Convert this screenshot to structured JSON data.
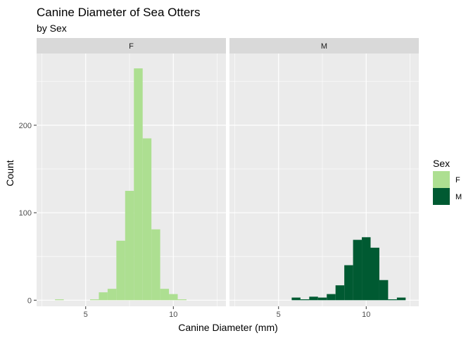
{
  "chart_data": {
    "type": "bar",
    "title": "Canine Diameter of Sea Otters",
    "subtitle": "by Sex",
    "xlabel": "Canine Diameter (mm)",
    "ylabel": "Count",
    "xlim": [
      2.2,
      13.0
    ],
    "ylim": [
      -7,
      282
    ],
    "x_ticks": [
      5,
      10
    ],
    "x_tick_labels": [
      "5",
      "10"
    ],
    "y_ticks": [
      0,
      100,
      200
    ],
    "y_tick_labels": [
      "0",
      "100",
      "200"
    ],
    "bin_width": 0.5,
    "grid": true,
    "legend": {
      "title": "Sex",
      "position": "right",
      "entries": [
        {
          "label": "F",
          "color": "#addf91"
        },
        {
          "label": "M",
          "color": "#005a32"
        }
      ]
    },
    "panels": [
      {
        "strip_label": "F",
        "color": "#addf91",
        "bins": [
          {
            "x": 3.5,
            "count": 1
          },
          {
            "x": 5.5,
            "count": 1
          },
          {
            "x": 6.0,
            "count": 9
          },
          {
            "x": 6.5,
            "count": 13
          },
          {
            "x": 7.0,
            "count": 68
          },
          {
            "x": 7.5,
            "count": 125
          },
          {
            "x": 8.0,
            "count": 265
          },
          {
            "x": 8.5,
            "count": 185
          },
          {
            "x": 9.0,
            "count": 81
          },
          {
            "x": 9.5,
            "count": 13
          },
          {
            "x": 10.0,
            "count": 7
          },
          {
            "x": 10.5,
            "count": 1
          }
        ]
      },
      {
        "strip_label": "M",
        "color": "#005a32",
        "bins": [
          {
            "x": 6.0,
            "count": 3
          },
          {
            "x": 6.5,
            "count": 1
          },
          {
            "x": 7.0,
            "count": 4
          },
          {
            "x": 7.5,
            "count": 3
          },
          {
            "x": 8.0,
            "count": 7
          },
          {
            "x": 8.5,
            "count": 17
          },
          {
            "x": 9.0,
            "count": 40
          },
          {
            "x": 9.5,
            "count": 69
          },
          {
            "x": 10.0,
            "count": 72
          },
          {
            "x": 10.5,
            "count": 60
          },
          {
            "x": 11.0,
            "count": 23
          },
          {
            "x": 11.5,
            "count": 1
          },
          {
            "x": 12.0,
            "count": 3
          }
        ]
      }
    ]
  }
}
